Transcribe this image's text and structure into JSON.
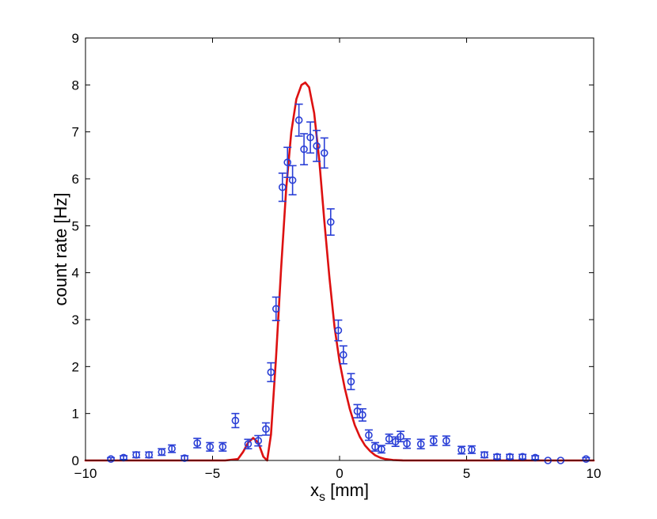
{
  "chart_data": {
    "type": "scatter",
    "title": "",
    "xlabel": "x",
    "xlabel_subscript": "s",
    "xlabel_unit": " [mm]",
    "ylabel": "count rate [Hz]",
    "xlim": [
      -10,
      10
    ],
    "ylim": [
      0,
      9
    ],
    "xticks": [
      -10,
      -5,
      0,
      5,
      10
    ],
    "xtick_labels": [
      "−10",
      "−5",
      "0",
      "5",
      "10"
    ],
    "yticks": [
      0,
      1,
      2,
      3,
      4,
      5,
      6,
      7,
      8,
      9
    ],
    "ytick_labels": [
      "0",
      "1",
      "2",
      "3",
      "4",
      "5",
      "6",
      "7",
      "8",
      "9"
    ],
    "grid": false,
    "legend": "none",
    "series": [
      {
        "kind": "errorbar-scatter",
        "marker": "circle-open",
        "color": "#2a3fd6",
        "points": [
          {
            "x": -9.0,
            "y": 0.03,
            "err": 0.03
          },
          {
            "x": -8.5,
            "y": 0.06,
            "err": 0.04
          },
          {
            "x": -8.0,
            "y": 0.12,
            "err": 0.06
          },
          {
            "x": -7.5,
            "y": 0.12,
            "err": 0.06
          },
          {
            "x": -7.0,
            "y": 0.18,
            "err": 0.07
          },
          {
            "x": -6.6,
            "y": 0.25,
            "err": 0.08
          },
          {
            "x": -6.1,
            "y": 0.05,
            "err": 0.05
          },
          {
            "x": -5.6,
            "y": 0.37,
            "err": 0.1
          },
          {
            "x": -5.1,
            "y": 0.29,
            "err": 0.09
          },
          {
            "x": -4.6,
            "y": 0.29,
            "err": 0.09
          },
          {
            "x": -4.1,
            "y": 0.85,
            "err": 0.15
          },
          {
            "x": -3.6,
            "y": 0.35,
            "err": 0.1
          },
          {
            "x": -3.2,
            "y": 0.42,
            "err": 0.11
          },
          {
            "x": -2.9,
            "y": 0.67,
            "err": 0.13
          },
          {
            "x": -2.7,
            "y": 1.88,
            "err": 0.2
          },
          {
            "x": -2.5,
            "y": 3.23,
            "err": 0.25
          },
          {
            "x": -2.25,
            "y": 5.82,
            "err": 0.3
          },
          {
            "x": -2.05,
            "y": 6.35,
            "err": 0.32
          },
          {
            "x": -1.85,
            "y": 5.97,
            "err": 0.31
          },
          {
            "x": -1.6,
            "y": 7.25,
            "err": 0.34
          },
          {
            "x": -1.4,
            "y": 6.63,
            "err": 0.33
          },
          {
            "x": -1.15,
            "y": 6.88,
            "err": 0.33
          },
          {
            "x": -0.9,
            "y": 6.7,
            "err": 0.33
          },
          {
            "x": -0.6,
            "y": 6.55,
            "err": 0.32
          },
          {
            "x": -0.35,
            "y": 5.08,
            "err": 0.28
          },
          {
            "x": -0.05,
            "y": 2.77,
            "err": 0.22
          },
          {
            "x": 0.15,
            "y": 2.25,
            "err": 0.19
          },
          {
            "x": 0.45,
            "y": 1.68,
            "err": 0.17
          },
          {
            "x": 0.7,
            "y": 1.05,
            "err": 0.14
          },
          {
            "x": 0.9,
            "y": 0.97,
            "err": 0.13
          },
          {
            "x": 1.15,
            "y": 0.54,
            "err": 0.11
          },
          {
            "x": 1.4,
            "y": 0.29,
            "err": 0.09
          },
          {
            "x": 1.65,
            "y": 0.24,
            "err": 0.08
          },
          {
            "x": 1.95,
            "y": 0.46,
            "err": 0.1
          },
          {
            "x": 2.2,
            "y": 0.4,
            "err": 0.1
          },
          {
            "x": 2.4,
            "y": 0.51,
            "err": 0.11
          },
          {
            "x": 2.65,
            "y": 0.36,
            "err": 0.1
          },
          {
            "x": 3.2,
            "y": 0.35,
            "err": 0.1
          },
          {
            "x": 3.7,
            "y": 0.42,
            "err": 0.1
          },
          {
            "x": 4.2,
            "y": 0.42,
            "err": 0.1
          },
          {
            "x": 4.8,
            "y": 0.22,
            "err": 0.08
          },
          {
            "x": 5.2,
            "y": 0.23,
            "err": 0.08
          },
          {
            "x": 5.7,
            "y": 0.12,
            "err": 0.06
          },
          {
            "x": 6.2,
            "y": 0.08,
            "err": 0.05
          },
          {
            "x": 6.7,
            "y": 0.08,
            "err": 0.05
          },
          {
            "x": 7.2,
            "y": 0.08,
            "err": 0.05
          },
          {
            "x": 7.7,
            "y": 0.06,
            "err": 0.04
          },
          {
            "x": 8.2,
            "y": 0.0,
            "err": 0.0
          },
          {
            "x": 8.7,
            "y": 0.0,
            "err": 0.0
          },
          {
            "x": 9.7,
            "y": 0.03,
            "err": 0.03
          }
        ]
      },
      {
        "kind": "line",
        "color": "#dd1111",
        "x": [
          -10,
          -4.5,
          -4.0,
          -3.8,
          -3.6,
          -3.4,
          -3.2,
          -3.0,
          -2.85,
          -2.7,
          -2.5,
          -2.3,
          -2.1,
          -1.9,
          -1.7,
          -1.5,
          -1.35,
          -1.2,
          -1.0,
          -0.8,
          -0.6,
          -0.4,
          -0.2,
          0.0,
          0.2,
          0.4,
          0.6,
          0.8,
          1.0,
          1.2,
          1.4,
          1.6,
          1.8,
          2.1,
          2.5,
          3.0,
          10
        ],
        "y": [
          0,
          0,
          0.03,
          0.18,
          0.38,
          0.48,
          0.38,
          0.08,
          0.0,
          0.55,
          2.2,
          4.1,
          5.8,
          7.0,
          7.7,
          8.0,
          8.05,
          7.95,
          7.4,
          6.4,
          5.1,
          3.9,
          2.85,
          2.1,
          1.55,
          1.1,
          0.75,
          0.5,
          0.32,
          0.2,
          0.11,
          0.06,
          0.03,
          0.01,
          0.0,
          0.0,
          0.0
        ]
      }
    ]
  }
}
